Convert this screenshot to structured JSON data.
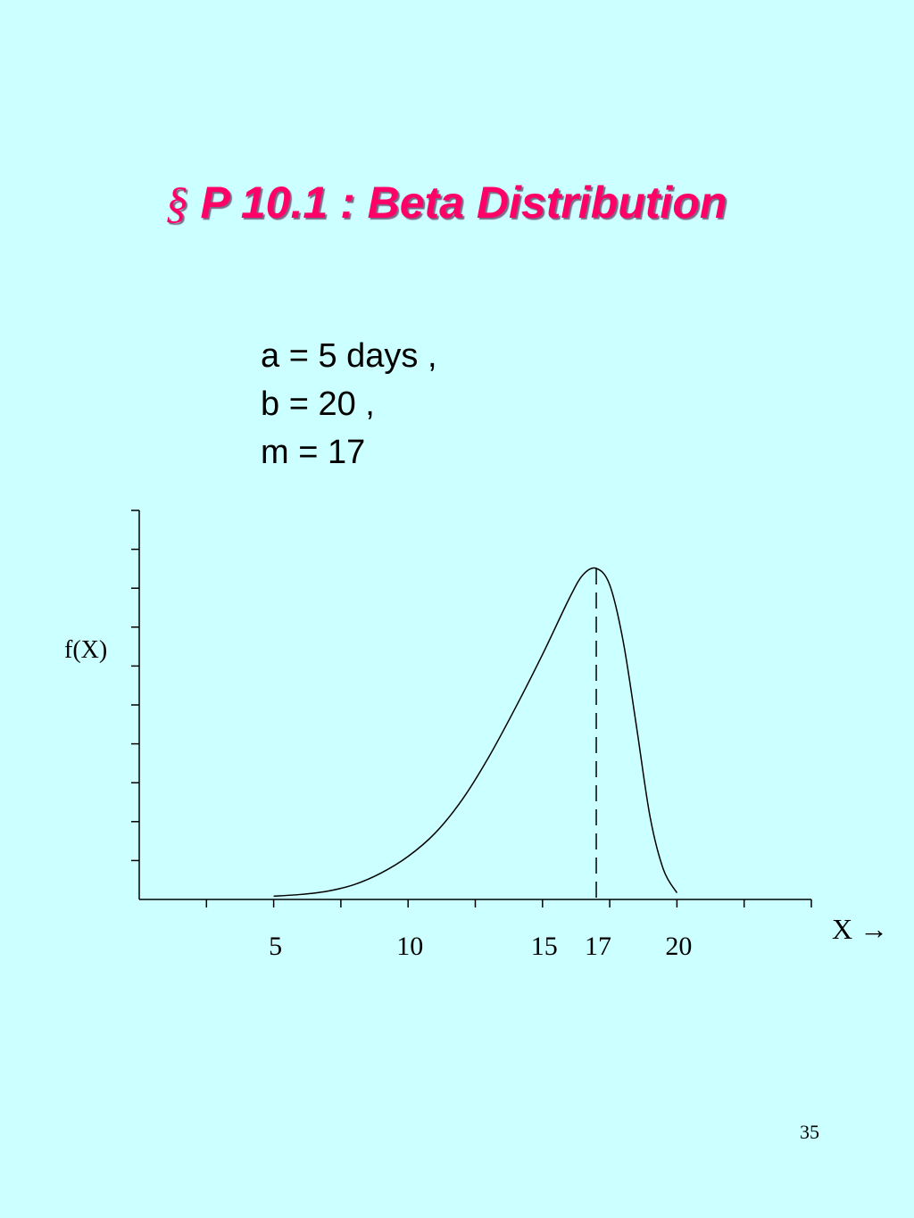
{
  "title": {
    "symbol": "§",
    "text": "P 10.1 : Beta Distribution"
  },
  "params": [
    "a = 5 days ,",
    "b = 20 ,",
    "m = 17"
  ],
  "slide_number": "35",
  "chart_data": {
    "type": "line",
    "title": "",
    "xlabel": "X →",
    "ylabel": "f(X)",
    "x_ticklabels": [
      {
        "x": 5,
        "label": "5"
      },
      {
        "x": 10,
        "label": "10"
      },
      {
        "x": 15,
        "label": "15"
      },
      {
        "x": 17,
        "label": "17"
      },
      {
        "x": 20,
        "label": "20"
      }
    ],
    "xlim": [
      0,
      25
    ],
    "ylim": [
      0,
      1
    ],
    "x_tick_step": 2.5,
    "y_tick_count": 10,
    "grid": false,
    "series": [
      {
        "x": [
          5,
          6,
          7,
          8,
          9,
          10,
          11,
          12,
          13,
          14,
          15,
          16,
          16.5,
          17,
          17.5,
          18,
          18.5,
          19,
          19.5,
          20
        ],
        "values": [
          0.01,
          0.015,
          0.025,
          0.045,
          0.08,
          0.13,
          0.2,
          0.3,
          0.43,
          0.58,
          0.74,
          0.91,
          0.98,
          1.0,
          0.95,
          0.78,
          0.52,
          0.25,
          0.09,
          0.02
        ]
      }
    ],
    "mode_marker": {
      "x": 17,
      "style": "dashed"
    },
    "line_color": "#000000",
    "background_color": "#ccffff"
  }
}
